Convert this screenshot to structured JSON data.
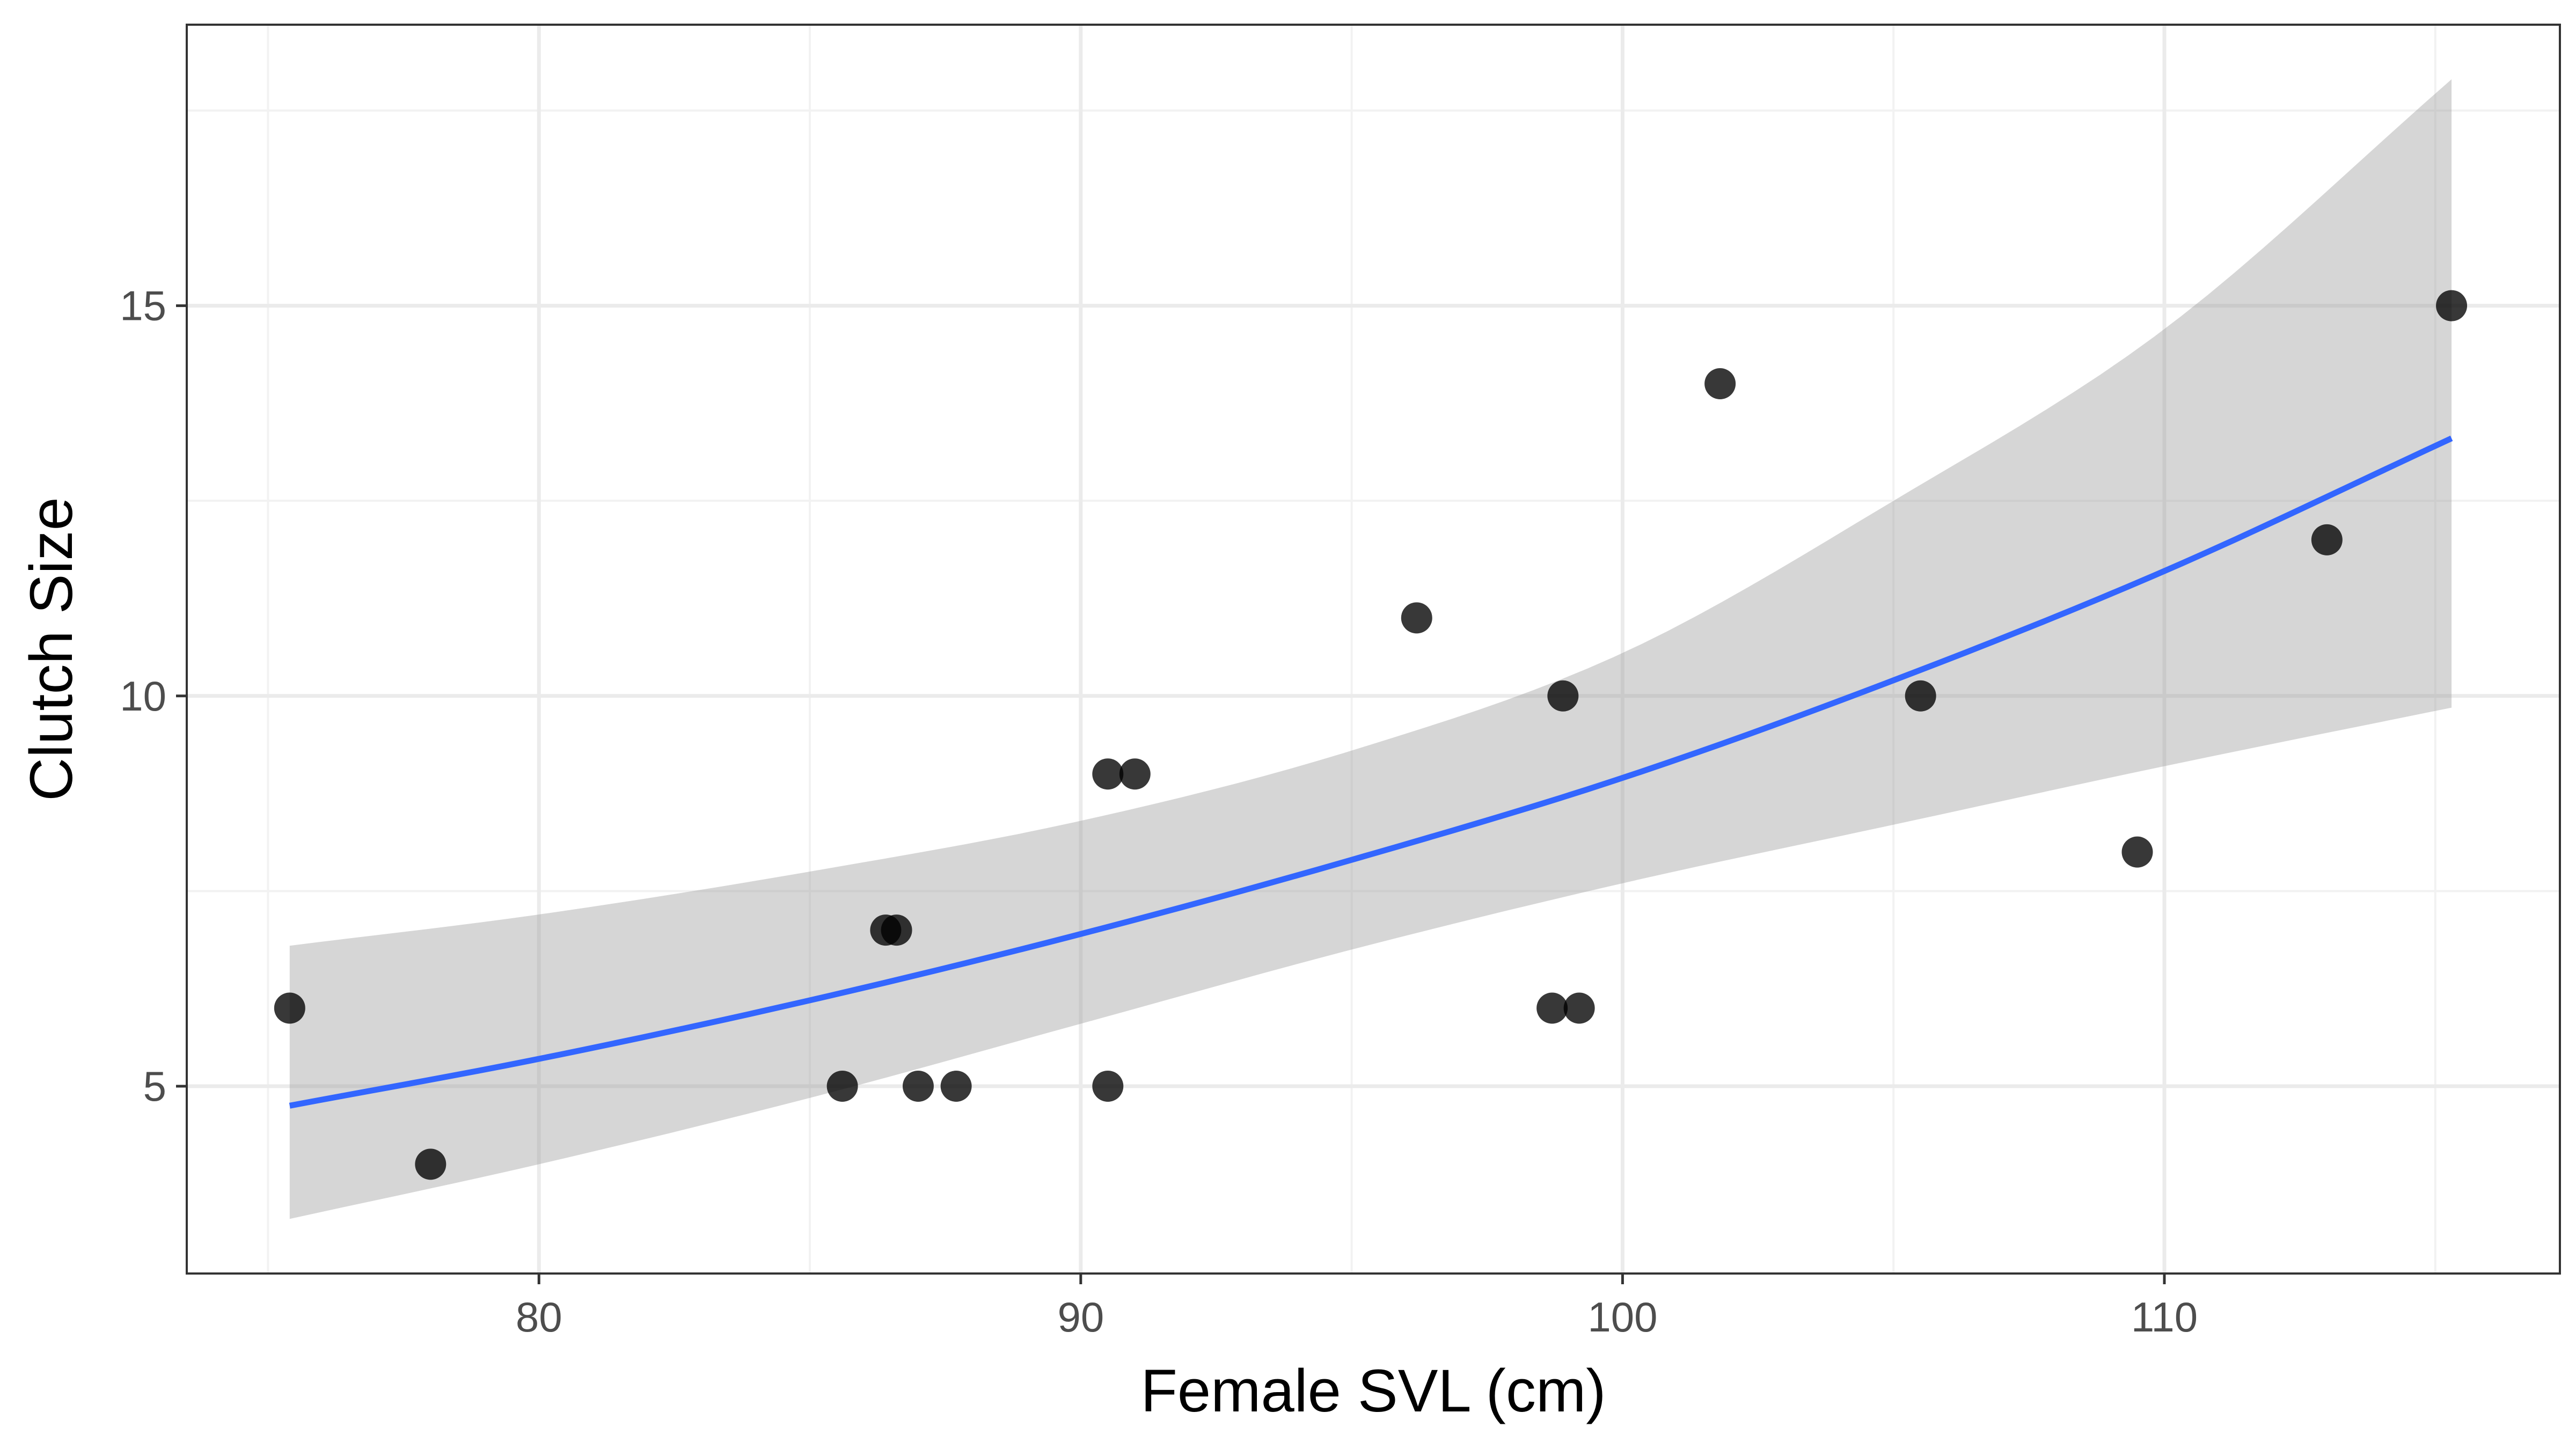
{
  "chart_data": {
    "type": "scatter",
    "title": "",
    "xlabel": "Female SVL (cm)",
    "ylabel": "Clutch Size",
    "xlim": [
      73.5,
      117.3
    ],
    "ylim": [
      2.6,
      18.6
    ],
    "xticks": [
      80,
      90,
      100,
      110
    ],
    "yticks": [
      5,
      10,
      15
    ],
    "xtick_labels": [
      "80",
      "90",
      "100",
      "110"
    ],
    "ytick_labels": [
      "5",
      "10",
      "15"
    ],
    "grid": true,
    "legend": "none",
    "points": [
      {
        "x": 75.4,
        "y": 6
      },
      {
        "x": 78.0,
        "y": 4
      },
      {
        "x": 85.6,
        "y": 5
      },
      {
        "x": 86.4,
        "y": 7
      },
      {
        "x": 86.6,
        "y": 7
      },
      {
        "x": 87.0,
        "y": 5
      },
      {
        "x": 87.7,
        "y": 5
      },
      {
        "x": 90.5,
        "y": 9
      },
      {
        "x": 90.5,
        "y": 5
      },
      {
        "x": 91.0,
        "y": 9
      },
      {
        "x": 96.2,
        "y": 11
      },
      {
        "x": 98.7,
        "y": 6
      },
      {
        "x": 98.9,
        "y": 10
      },
      {
        "x": 99.2,
        "y": 6
      },
      {
        "x": 101.8,
        "y": 14
      },
      {
        "x": 105.5,
        "y": 10
      },
      {
        "x": 109.5,
        "y": 8
      },
      {
        "x": 113.0,
        "y": 12
      },
      {
        "x": 115.3,
        "y": 15
      }
    ],
    "fit": {
      "x": [
        75.4,
        80,
        85,
        90,
        95,
        100,
        105,
        110,
        115.3
      ],
      "y": [
        4.75,
        5.35,
        6.1,
        6.95,
        7.9,
        8.95,
        10.2,
        11.6,
        13.3
      ],
      "ci_lower": [
        3.3,
        4.0,
        4.85,
        5.8,
        6.75,
        7.6,
        8.35,
        9.1,
        9.85
      ],
      "ci_upper": [
        6.8,
        7.2,
        7.75,
        8.4,
        9.3,
        10.55,
        12.5,
        14.7,
        17.9
      ]
    },
    "colors": {
      "points": "#000000",
      "fit_line": "#3366ff",
      "ci_band": "#999999",
      "grid_major": "#ebebeb",
      "grid_minor": "#f2f2f2",
      "panel_border": "#333333",
      "tick_text": "#4d4d4d"
    }
  }
}
